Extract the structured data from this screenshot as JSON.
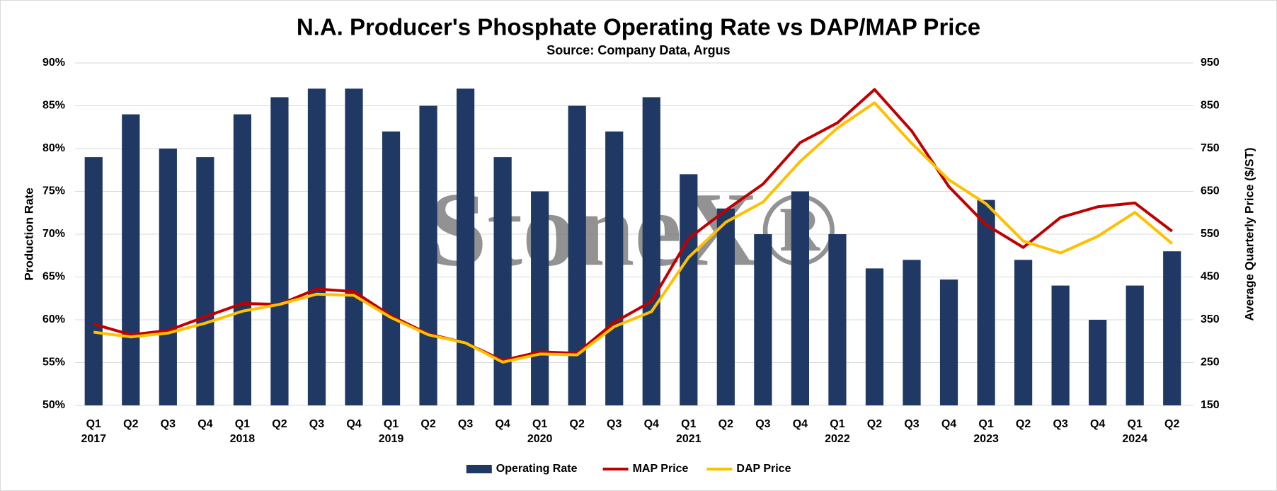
{
  "chart_data": {
    "type": "bar-line",
    "title": "N.A. Producer's Phosphate Operating Rate vs DAP/MAP Price",
    "subtitle": "Source: Company Data, Argus",
    "watermark": "StoneX®",
    "y_label": "Production Rate",
    "y2_label": "Average Quarterly Price ($/ST)",
    "categories": [
      "Q1",
      "Q2",
      "Q3",
      "Q4",
      "Q1",
      "Q2",
      "Q3",
      "Q4",
      "Q1",
      "Q2",
      "Q3",
      "Q4",
      "Q1",
      "Q2",
      "Q3",
      "Q4",
      "Q1",
      "Q2",
      "Q3",
      "Q4",
      "Q1",
      "Q2",
      "Q3",
      "Q4",
      "Q1",
      "Q2",
      "Q3",
      "Q4",
      "Q1",
      "Q2"
    ],
    "years": [
      "2017",
      null,
      null,
      null,
      "2018",
      null,
      null,
      null,
      "2019",
      null,
      null,
      null,
      "2020",
      null,
      null,
      null,
      "2021",
      null,
      null,
      null,
      "2022",
      null,
      null,
      null,
      "2023",
      null,
      null,
      null,
      "2024",
      null
    ],
    "series": [
      {
        "name": "Operating Rate",
        "type": "bar",
        "color": "#1f3864",
        "values": [
          79,
          84,
          80,
          79,
          84,
          86,
          87,
          87,
          82,
          85,
          87,
          79,
          75,
          85,
          82,
          86,
          77,
          73,
          70,
          75,
          70,
          66,
          67,
          64.7,
          74,
          67,
          64,
          60,
          64,
          68
        ]
      },
      {
        "name": "MAP Price",
        "type": "line",
        "axis": "y2",
        "color": "#c00000",
        "values": [
          340,
          315,
          325,
          357,
          388,
          386,
          422,
          416,
          359,
          317,
          296,
          255,
          275,
          272,
          344,
          393,
          540,
          606,
          667,
          764,
          810,
          888,
          791,
          661,
          572,
          519,
          589,
          614,
          623,
          557
        ]
      },
      {
        "name": "DAP Price",
        "type": "line",
        "axis": "y2",
        "color": "#ffc000",
        "values": [
          321,
          310,
          319,
          342,
          370,
          386,
          410,
          407,
          355,
          315,
          296,
          251,
          270,
          268,
          334,
          369,
          496,
          578,
          625,
          720,
          798,
          857,
          762,
          677,
          621,
          534,
          506,
          545,
          601,
          528
        ]
      }
    ],
    "ylim": [
      50,
      90
    ],
    "yticks": [
      {
        "value": 50,
        "label": "50%"
      },
      {
        "value": 55,
        "label": "55%"
      },
      {
        "value": 60,
        "label": "60%"
      },
      {
        "value": 65,
        "label": "65%"
      },
      {
        "value": 70,
        "label": "70%"
      },
      {
        "value": 75,
        "label": "75%"
      },
      {
        "value": 80,
        "label": "80%"
      },
      {
        "value": 85,
        "label": "85%"
      },
      {
        "value": 90,
        "label": "90%"
      }
    ],
    "y2lim": [
      150,
      950
    ],
    "y2ticks": [
      150,
      250,
      350,
      450,
      550,
      650,
      750,
      850,
      950
    ],
    "grid": true,
    "legend": "bottom"
  }
}
